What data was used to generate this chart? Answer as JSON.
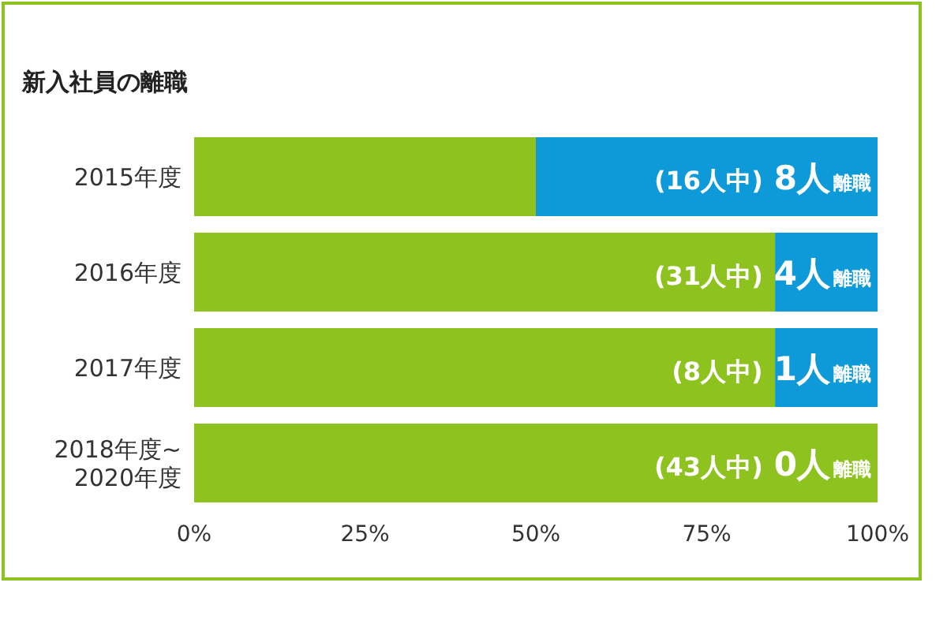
{
  "chart_data": {
    "type": "bar",
    "orientation": "horizontal",
    "stacked": true,
    "title": "新入社員の離職",
    "categories": [
      "2015年度",
      "2016年度",
      "2017年度",
      "2018年度~\n2020年度"
    ],
    "series": [
      {
        "color": "#8dc21f",
        "values": [
          50,
          85,
          85,
          100
        ]
      },
      {
        "color": "#0e9ad9",
        "values": [
          50,
          15,
          15,
          0
        ]
      }
    ],
    "xlim": [
      0,
      100
    ],
    "xticks": [
      {
        "value": 0,
        "label": "0%"
      },
      {
        "value": 25,
        "label": "25%"
      },
      {
        "value": 50,
        "label": "50%"
      },
      {
        "value": 75,
        "label": "75%"
      },
      {
        "value": 100,
        "label": "100%"
      }
    ],
    "grid": false,
    "annotations": [
      "(16人中) 8人 離職",
      "(31人中) 4人 離職",
      "(8人中) 1人 離職",
      "(43人中) 0人 離職"
    ]
  }
}
